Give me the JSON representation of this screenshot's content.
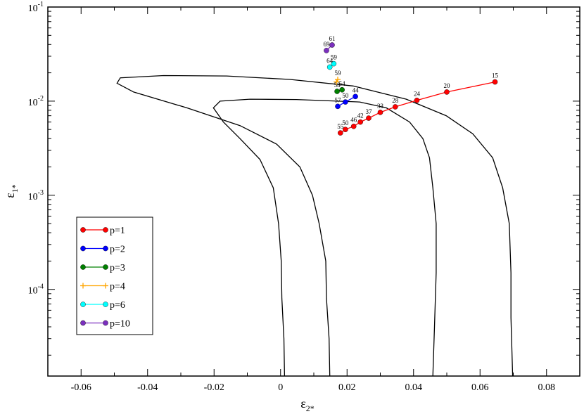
{
  "chart_data": {
    "type": "scatter",
    "title": "",
    "xlabel_main": "ε",
    "xlabel_sub": "2*",
    "ylabel_main": "ε",
    "ylabel_sub": "1*",
    "xlim": [
      -0.07,
      0.09
    ],
    "ylim": [
      1.2e-05,
      0.1
    ],
    "yscale": "log",
    "xticks": [
      {
        "value": -0.06,
        "label": "-0.06"
      },
      {
        "value": -0.04,
        "label": "-0.04"
      },
      {
        "value": -0.02,
        "label": "-0.02"
      },
      {
        "value": 0.0,
        "label": "0"
      },
      {
        "value": 0.02,
        "label": "0.02"
      },
      {
        "value": 0.04,
        "label": "0.04"
      },
      {
        "value": 0.06,
        "label": "0.06"
      },
      {
        "value": 0.08,
        "label": "0.08"
      }
    ],
    "yticks": [
      {
        "value": 0.1,
        "base": "10",
        "exp": "-1"
      },
      {
        "value": 0.01,
        "base": "10",
        "exp": "-2"
      },
      {
        "value": 0.001,
        "base": "10",
        "exp": "-3"
      },
      {
        "value": 0.0001,
        "base": "10",
        "exp": "-4"
      }
    ],
    "legend_position": "bottom-left",
    "contours": [
      {
        "name": "inner-contour",
        "points": [
          [
            0.0012,
            1.2e-05
          ],
          [
            0.001,
            3e-05
          ],
          [
            0.0004,
            8e-05
          ],
          [
            0.0002,
            0.0002
          ],
          [
            -0.0006,
            0.0005
          ],
          [
            -0.0022,
            0.0012
          ],
          [
            -0.0062,
            0.0024
          ],
          [
            -0.0122,
            0.004
          ],
          [
            -0.0172,
            0.006
          ],
          [
            -0.0202,
            0.0085
          ],
          [
            -0.0182,
            0.01
          ],
          [
            -0.0092,
            0.0105
          ],
          [
            0.0048,
            0.0104
          ],
          [
            0.0238,
            0.0098
          ],
          [
            0.0318,
            0.0085
          ],
          [
            0.0388,
            0.006
          ],
          [
            0.0428,
            0.004
          ],
          [
            0.0448,
            0.0025
          ],
          [
            0.0458,
            0.0012
          ],
          [
            0.0468,
            0.0005
          ],
          [
            0.0468,
            0.00015
          ],
          [
            0.0463,
            4e-05
          ],
          [
            0.0458,
            1.2e-05
          ]
        ]
      },
      {
        "name": "outer-contour",
        "points": [
          [
            0.0148,
            1.2e-05
          ],
          [
            0.0146,
            3e-05
          ],
          [
            0.0138,
            8e-05
          ],
          [
            0.0136,
            0.0002
          ],
          [
            0.0116,
            0.0005
          ],
          [
            0.0096,
            0.001
          ],
          [
            0.0058,
            0.002
          ],
          [
            -0.0012,
            0.0035
          ],
          [
            -0.0122,
            0.0055
          ],
          [
            -0.0282,
            0.0085
          ],
          [
            -0.0442,
            0.0125
          ],
          [
            -0.0492,
            0.0155
          ],
          [
            -0.0482,
            0.0177
          ],
          [
            -0.0352,
            0.0187
          ],
          [
            -0.0162,
            0.0185
          ],
          [
            0.0028,
            0.017
          ],
          [
            0.0218,
            0.0145
          ],
          [
            0.0378,
            0.0105
          ],
          [
            0.0498,
            0.007
          ],
          [
            0.0578,
            0.0045
          ],
          [
            0.0638,
            0.0025
          ],
          [
            0.0668,
            0.0012
          ],
          [
            0.0688,
            0.0005
          ],
          [
            0.0693,
            0.00015
          ],
          [
            0.0693,
            5e-05
          ],
          [
            0.0698,
            1.2e-05
          ]
        ]
      }
    ],
    "series": [
      {
        "name": "p=1",
        "color": "#ff0000",
        "marker": "circle",
        "points": [
          {
            "x": 0.0645,
            "y": 0.016,
            "label": "15"
          },
          {
            "x": 0.05,
            "y": 0.0125,
            "label": "20"
          },
          {
            "x": 0.041,
            "y": 0.0102,
            "label": "24"
          },
          {
            "x": 0.0345,
            "y": 0.0087,
            "label": "28"
          },
          {
            "x": 0.03,
            "y": 0.0076,
            "label": "33"
          },
          {
            "x": 0.0265,
            "y": 0.0066,
            "label": "37"
          },
          {
            "x": 0.024,
            "y": 0.006,
            "label": "42"
          },
          {
            "x": 0.022,
            "y": 0.0054,
            "label": "46"
          },
          {
            "x": 0.0195,
            "y": 0.005,
            "label": "50"
          },
          {
            "x": 0.018,
            "y": 0.0046,
            "label": "55"
          }
        ]
      },
      {
        "name": "p=2",
        "color": "#0000ff",
        "marker": "circle",
        "points": [
          {
            "x": 0.0225,
            "y": 0.0112,
            "label": "44"
          },
          {
            "x": 0.0195,
            "y": 0.0098,
            "label": "50"
          },
          {
            "x": 0.0172,
            "y": 0.0088,
            "label": "57"
          }
        ]
      },
      {
        "name": "p=3",
        "color": "#008000",
        "marker": "circle",
        "points": [
          {
            "x": 0.0185,
            "y": 0.0132,
            "label": "54"
          },
          {
            "x": 0.017,
            "y": 0.0127,
            "label": "58"
          }
        ]
      },
      {
        "name": "p=4",
        "color": "#ffa500",
        "marker": "plus",
        "points": [
          {
            "x": 0.0172,
            "y": 0.017,
            "label": "59"
          },
          {
            "x": 0.0168,
            "y": 0.016,
            "label": ""
          }
        ]
      },
      {
        "name": "p=6",
        "color": "#00ffff",
        "marker": "circle",
        "points": [
          {
            "x": 0.016,
            "y": 0.025,
            "label": "59"
          },
          {
            "x": 0.0148,
            "y": 0.023,
            "label": "64"
          }
        ]
      },
      {
        "name": "p=10",
        "color": "#7b2fbe",
        "marker": "circle",
        "points": [
          {
            "x": 0.0155,
            "y": 0.0395,
            "label": "61"
          },
          {
            "x": 0.0138,
            "y": 0.0345,
            "label": "69"
          }
        ]
      }
    ]
  }
}
